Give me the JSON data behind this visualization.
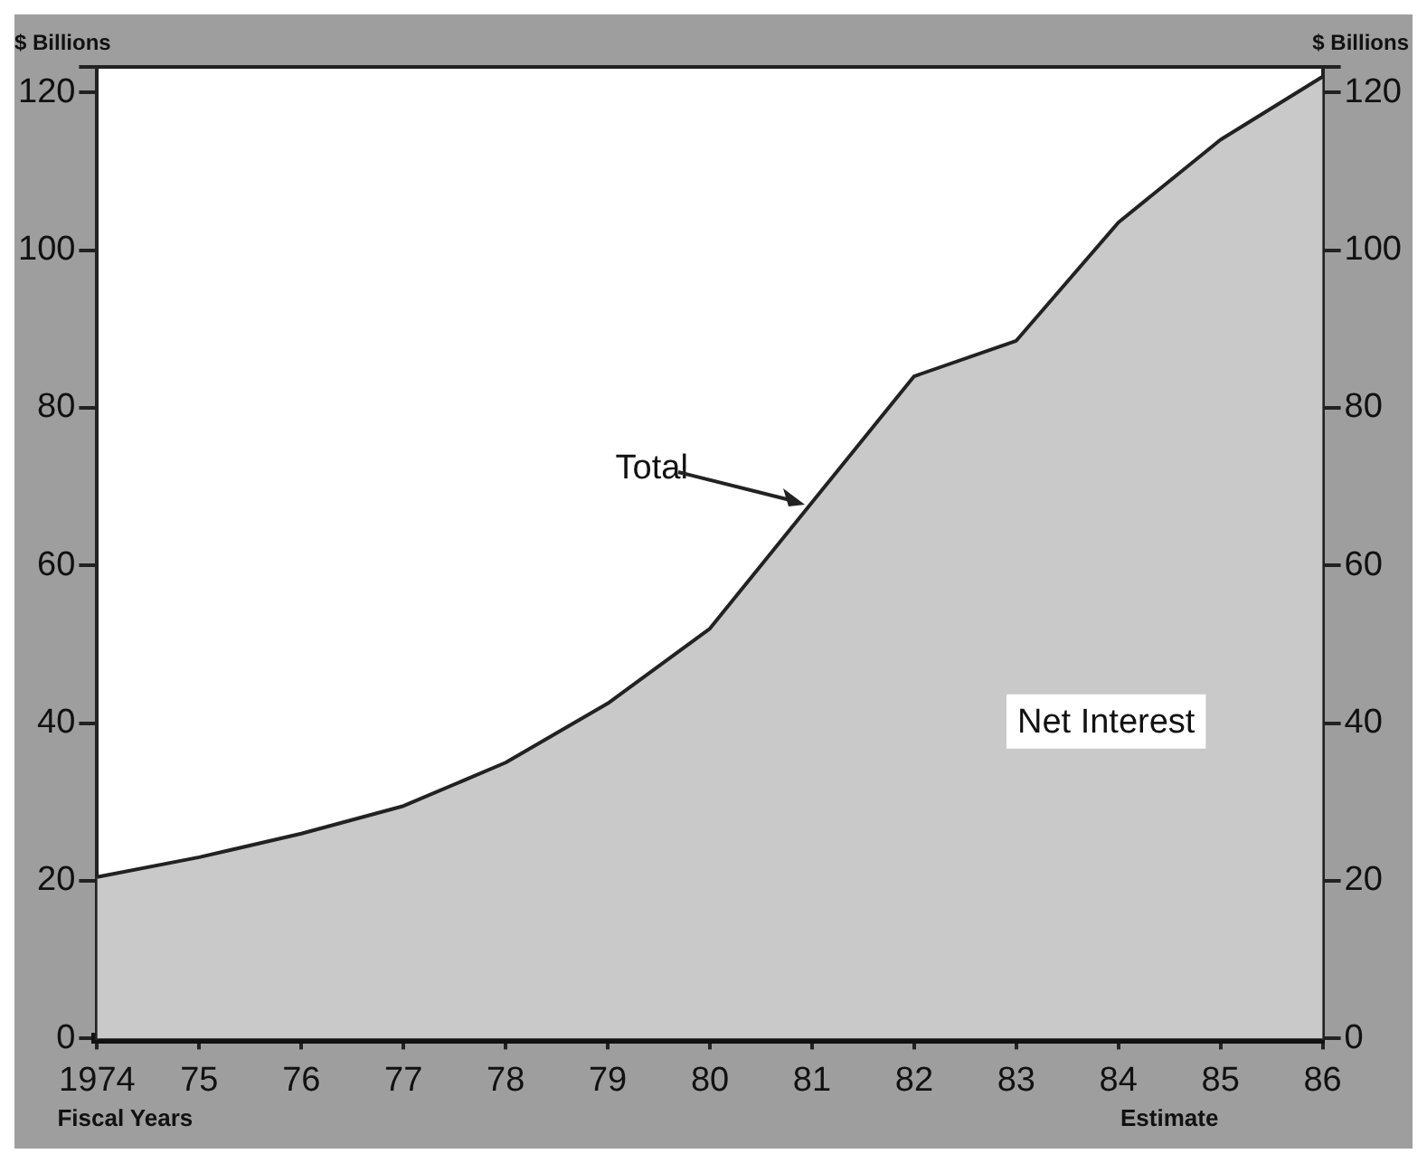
{
  "chart_data": {
    "type": "area",
    "ylabel": "$ Billions",
    "y2label": "$ Billions",
    "xlabel": "Fiscal Years",
    "categories": [
      "1974",
      "75",
      "76",
      "77",
      "78",
      "79",
      "80",
      "81",
      "82",
      "83",
      "84",
      "85",
      "86"
    ],
    "series": [
      {
        "color": "#222222",
        "values": [
          20.5,
          23,
          26,
          29.5,
          35,
          42.5,
          52,
          68,
          84,
          88.5,
          103.5,
          114,
          122
        ]
      }
    ],
    "ylim": [
      0,
      123
    ],
    "yticks": [
      0,
      20,
      40,
      60,
      80,
      100,
      120
    ],
    "y2lim": [
      0,
      123
    ],
    "y2ticks": [
      0,
      20,
      40,
      60,
      80,
      100,
      120
    ],
    "annotations": [
      "Total",
      "Net Interest",
      "Estimate"
    ],
    "grid": false,
    "legend": false
  }
}
